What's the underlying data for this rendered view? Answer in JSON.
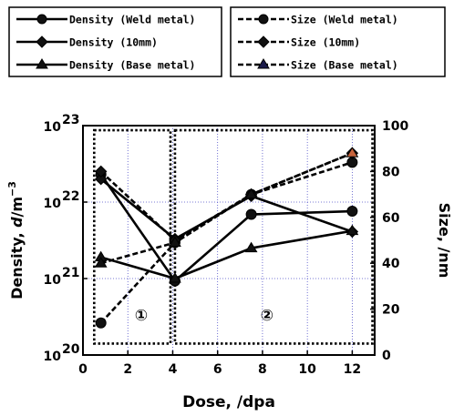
{
  "chart_data": {
    "type": "line",
    "x": {
      "label": "Dose, /dpa",
      "ticks": [
        0,
        2,
        4,
        6,
        8,
        10,
        12
      ],
      "range": [
        0,
        13
      ]
    },
    "y_left": {
      "label_parts": [
        "Density, ",
        "d",
        "/m",
        "−3"
      ],
      "scale": "log",
      "range": [
        1e+20,
        1e+23
      ],
      "ticks": [
        {
          "base": "10",
          "exp": "20",
          "value": 1e+20
        },
        {
          "base": "10",
          "exp": "21",
          "value": 1e+21
        },
        {
          "base": "10",
          "exp": "22",
          "value": 1e+22
        },
        {
          "base": "10",
          "exp": "23",
          "value": 1e+23
        }
      ]
    },
    "y_right": {
      "label": "Size, /nm",
      "range": [
        0,
        100
      ],
      "ticks": [
        0,
        20,
        40,
        60,
        80,
        100
      ]
    },
    "grid": true,
    "grid_color": "#5050c8",
    "series": [
      {
        "name": "Density (Weld metal)",
        "axis": "left",
        "marker": "circle",
        "line": "solid",
        "x": [
          0.8,
          4.1,
          7.5,
          12
        ],
        "values": [
          2.3e+22,
          9.3e+20,
          6.9e+21,
          7.6e+21
        ]
      },
      {
        "name": "Density (10mm)",
        "axis": "left",
        "marker": "diamond",
        "line": "solid",
        "x": [
          0.8,
          4.1,
          7.5,
          12
        ],
        "values": [
          2e+22,
          3.3e+21,
          1.2e+22,
          4.1e+21
        ]
      },
      {
        "name": "Density (Base metal)",
        "axis": "left",
        "marker": "triangle",
        "line": "solid",
        "x": [
          0.8,
          4.1,
          7.5,
          12
        ],
        "values": [
          1.9e+21,
          1e+21,
          2.5e+21,
          4.2e+21
        ]
      },
      {
        "name": "Size (Weld metal)",
        "axis": "right",
        "marker": "circle",
        "line": "dashed",
        "x": [
          0.8,
          4.1,
          7.5,
          12
        ],
        "values": [
          14,
          49,
          70,
          84
        ]
      },
      {
        "name": "Size (10mm)",
        "axis": "right",
        "marker": "diamond",
        "line": "dashed",
        "x": [
          0.8,
          4.1,
          7.5,
          12
        ],
        "values": [
          80,
          50,
          70,
          88
        ]
      },
      {
        "name": "Size (Base metal)",
        "axis": "right",
        "marker": "triangle",
        "line": "dashed",
        "x": [
          0.8,
          4.1,
          7.5,
          12
        ],
        "values": [
          40,
          49,
          70,
          88
        ]
      }
    ],
    "regions": [
      {
        "label": "①",
        "x_range": [
          0.5,
          3.9
        ],
        "y_right_range": [
          5,
          98
        ]
      },
      {
        "label": "②",
        "x_range": [
          4.1,
          12.9
        ],
        "y_right_range": [
          5,
          98
        ]
      }
    ],
    "legend_position": "top",
    "title": "",
    "marker_accent_color": "#c8643c"
  }
}
